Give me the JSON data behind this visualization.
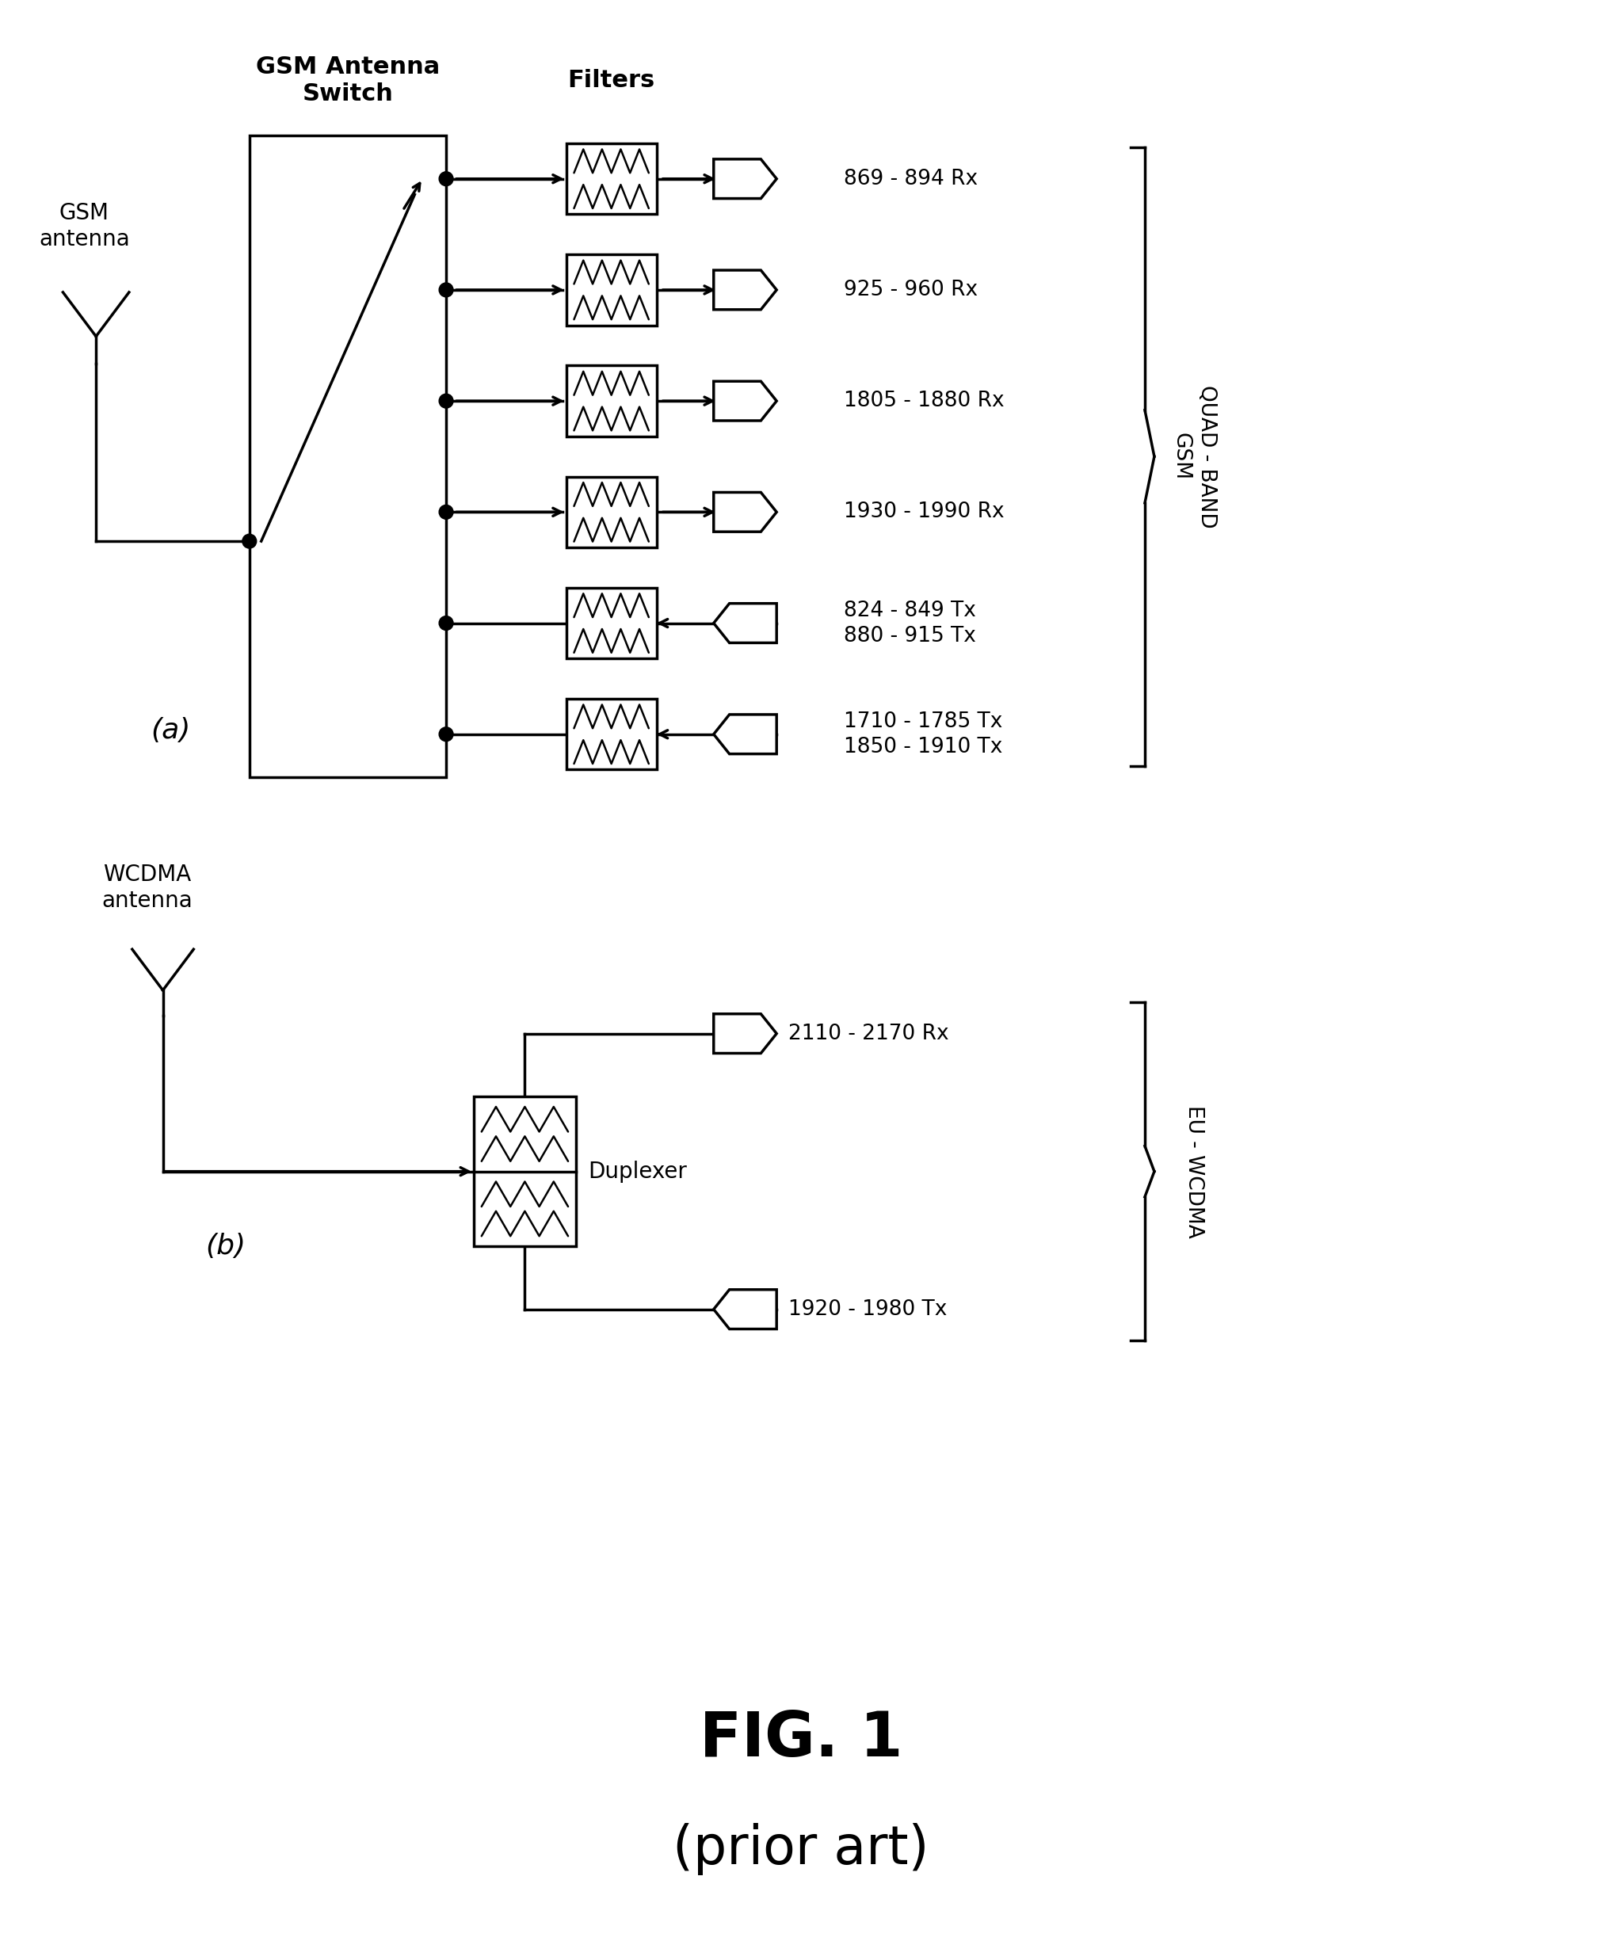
{
  "fig_width": 20.22,
  "fig_height": 24.74,
  "bg_color": "#ffffff",
  "line_color": "#000000",
  "line_width": 2.5,
  "lw_thin": 1.8,
  "title": "FIG. 1",
  "subtitle": "(prior art)",
  "gsm_label_top": "GSM Antenna\nSwitch",
  "filters_label": "Filters",
  "gsm_antenna_label": "GSM\nantenna",
  "wcdma_antenna_label": "WCDMA\nantenna",
  "duplexer_label": "Duplexer",
  "quad_band_label": "QUAD - BAND\nGSM",
  "eu_wcdma_label": "EU - WCDMA",
  "label_a": "(a)",
  "label_b": "(b)",
  "gsm_rows": [
    {
      "label": "869 - 894 Rx",
      "is_tx": false
    },
    {
      "label": "925 - 960 Rx",
      "is_tx": false
    },
    {
      "label": "1805 - 1880 Rx",
      "is_tx": false
    },
    {
      "label": "1930 - 1990 Rx",
      "is_tx": false
    },
    {
      "label": "824 - 849 Tx\n880 - 915 Tx",
      "is_tx": true
    },
    {
      "label": "1710 - 1785 Tx\n1850 - 1910 Tx",
      "is_tx": true
    }
  ],
  "wcdma_rx_label": "2110 - 2170 Rx",
  "wcdma_tx_label": "1920 - 1980 Tx"
}
